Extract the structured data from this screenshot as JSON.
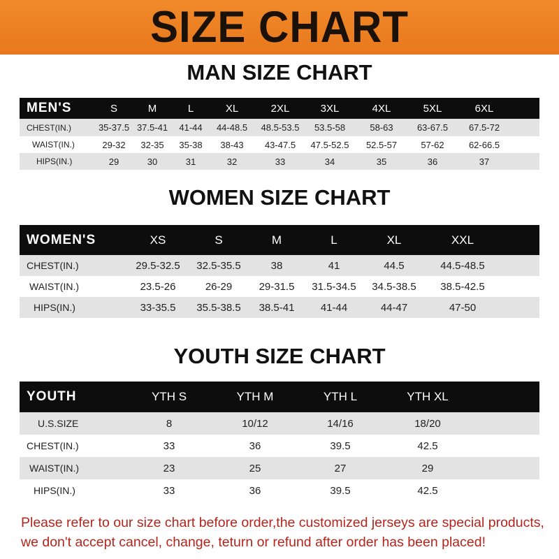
{
  "title": "SIZE CHART",
  "colors": {
    "banner": "#ef8428",
    "header_row": "#0d0d0d",
    "alt_row": "#e3e3e3",
    "note": "#b3261e"
  },
  "men": {
    "title": "MAN SIZE CHART",
    "header": [
      "MEN'S",
      "S",
      "M",
      "L",
      "XL",
      "2XL",
      "3XL",
      "4XL",
      "5XL",
      "6XL"
    ],
    "rows": [
      [
        "CHEST(IN.)",
        "35-37.5",
        "37.5-41",
        "41-44",
        "44-48.5",
        "48.5-53.5",
        "53.5-58",
        "58-63",
        "63-67.5",
        "67.5-72"
      ],
      [
        "WAIST(IN.)",
        "29-32",
        "32-35",
        "35-38",
        "38-43",
        "43-47.5",
        "47.5-52.5",
        "52.5-57",
        "57-62",
        "62-66.5"
      ],
      [
        "HIPS(IN.)",
        "29",
        "30",
        "31",
        "32",
        "33",
        "34",
        "35",
        "36",
        "37"
      ]
    ]
  },
  "women": {
    "title": "WOMEN SIZE CHART",
    "header": [
      "WOMEN'S",
      "XS",
      "S",
      "M",
      "L",
      "XL",
      "XXL"
    ],
    "rows": [
      [
        "CHEST(IN.)",
        "29.5-32.5",
        "32.5-35.5",
        "38",
        "41",
        "44.5",
        "44.5-48.5"
      ],
      [
        "WAIST(IN.)",
        "23.5-26",
        "26-29",
        "29-31.5",
        "31.5-34.5",
        "34.5-38.5",
        "38.5-42.5"
      ],
      [
        "HIPS(IN.)",
        "33-35.5",
        "35.5-38.5",
        "38.5-41",
        "41-44",
        "44-47",
        "47-50"
      ]
    ]
  },
  "youth": {
    "title": "YOUTH SIZE CHART",
    "header": [
      "YOUTH",
      "YTH S",
      "YTH M",
      "YTH L",
      "YTH XL"
    ],
    "rows": [
      [
        "U.S.SIZE",
        "8",
        "10/12",
        "14/16",
        "18/20"
      ],
      [
        "CHEST(IN.)",
        "33",
        "36",
        "39.5",
        "42.5"
      ],
      [
        "WAIST(IN.)",
        "23",
        "25",
        "27",
        "29"
      ],
      [
        "HIPS(IN.)",
        "33",
        "36",
        "39.5",
        "42.5"
      ]
    ]
  },
  "note": "Please refer to our size chart before order,the customized jerseys are special products, we don't accept cancel, change, teturn or refund after order has been placed!"
}
